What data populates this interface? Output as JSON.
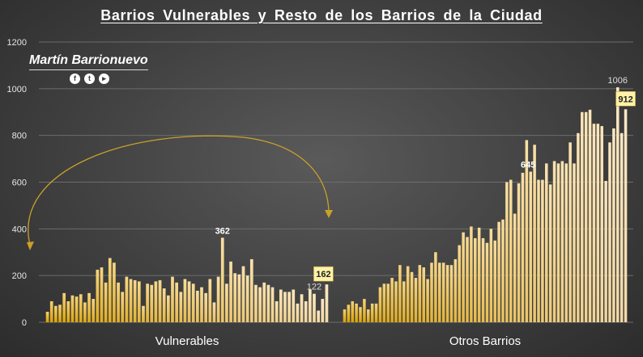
{
  "chart_data": {
    "type": "bar",
    "title": "Barrios  Vulnerables  y Resto de los Barrios  de la Ciudad",
    "ylim": [
      0,
      1200
    ],
    "yticks": [
      0,
      200,
      400,
      600,
      800,
      1000,
      1200
    ],
    "grid": "horizontal",
    "series": [
      {
        "name": "Vulnerables",
        "values": [
          45,
          90,
          70,
          75,
          125,
          90,
          115,
          110,
          120,
          85,
          125,
          100,
          225,
          235,
          170,
          275,
          255,
          170,
          130,
          195,
          185,
          180,
          175,
          70,
          165,
          160,
          175,
          180,
          145,
          115,
          195,
          170,
          130,
          185,
          175,
          165,
          135,
          150,
          125,
          185,
          85,
          195,
          362,
          165,
          260,
          210,
          205,
          240,
          200,
          270,
          160,
          150,
          170,
          160,
          150,
          90,
          140,
          130,
          130,
          140,
          80,
          120,
          90,
          140,
          122,
          50,
          100,
          162
        ],
        "annotations": [
          {
            "index": 42,
            "label": "362"
          },
          {
            "index": 64,
            "label": "122"
          },
          {
            "index": 67,
            "label": "162"
          }
        ]
      },
      {
        "name": "Otros Barrios",
        "values": [
          55,
          75,
          90,
          80,
          65,
          100,
          55,
          80,
          80,
          150,
          165,
          165,
          190,
          175,
          245,
          175,
          240,
          215,
          190,
          245,
          235,
          185,
          255,
          300,
          255,
          255,
          245,
          245,
          270,
          330,
          385,
          365,
          410,
          360,
          405,
          360,
          340,
          400,
          350,
          430,
          440,
          600,
          610,
          465,
          595,
          640,
          780,
          645,
          760,
          610,
          610,
          680,
          590,
          690,
          680,
          690,
          680,
          770,
          680,
          810,
          900,
          900,
          910,
          850,
          850,
          840,
          605,
          770,
          830,
          1006,
          810,
          912
        ],
        "annotations": [
          {
            "index": 47,
            "label": "645"
          },
          {
            "index": 69,
            "label": "1006"
          },
          {
            "index": 71,
            "label": "912"
          }
        ]
      }
    ]
  },
  "brand": {
    "name": "Martín Barrionuevo",
    "icons": [
      "facebook-icon",
      "twitter-icon",
      "youtube-icon"
    ]
  },
  "colors": {
    "bar_start": "#d9a000",
    "bar_end": "#fbe8c5",
    "highlight_label_bg": "#fff2a8",
    "arrow": "#c9a12a"
  }
}
